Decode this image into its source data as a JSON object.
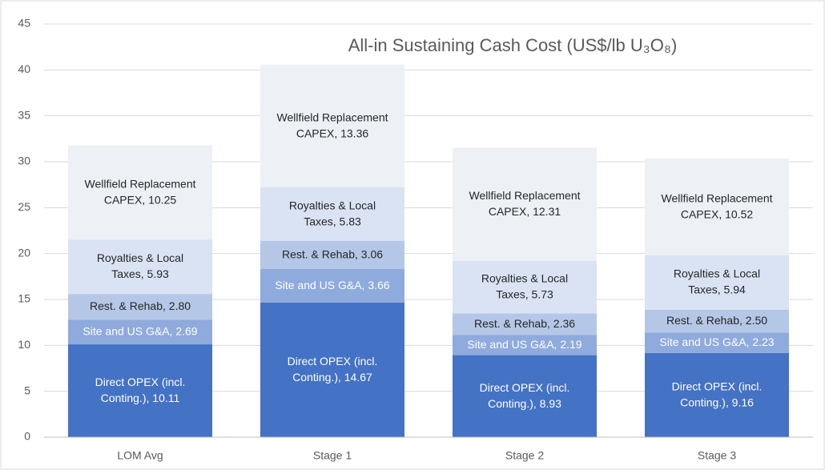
{
  "chart_data": {
    "type": "stacked_bar",
    "title": "All-in Sustaining Cash Cost (US$/lb U₃O₈)",
    "categories": [
      "LOM Avg",
      "Stage 1",
      "Stage 2",
      "Stage 3"
    ],
    "series": [
      {
        "name": "Direct OPEX (incl. Conting.)",
        "color": "#4472c4",
        "values": [
          10.11,
          14.67,
          8.93,
          9.16
        ],
        "value_labels": [
          "Direct OPEX (incl. Conting.), 10.11",
          "Direct OPEX (incl. Conting.), 14.67",
          "Direct OPEX (incl. Conting.), 8.93",
          "Direct OPEX (incl. Conting.), 9.16"
        ]
      },
      {
        "name": "Site and US G&A",
        "color": "#8faadc",
        "values": [
          2.69,
          3.66,
          2.19,
          2.23
        ],
        "value_labels": [
          "Site and US G&A, 2.69",
          "Site and US G&A, 3.66",
          "Site and US G&A, 2.19",
          "Site and US G&A, 2.23"
        ]
      },
      {
        "name": "Rest. & Rehab",
        "color": "#b4c7e7",
        "values": [
          2.8,
          3.06,
          2.36,
          2.5
        ],
        "value_labels": [
          "Rest. & Rehab, 2.80",
          "Rest. & Rehab, 3.06",
          "Rest. & Rehab, 2.36",
          "Rest. & Rehab, 2.50"
        ]
      },
      {
        "name": "Royalties & Local Taxes",
        "color": "#dae3f3",
        "values": [
          5.93,
          5.83,
          5.73,
          5.94
        ],
        "value_labels": [
          "Royalties & Local Taxes, 5.93",
          "Royalties & Local Taxes, 5.83",
          "Royalties & Local Taxes, 5.73",
          "Royalties & Local Taxes, 5.94"
        ]
      },
      {
        "name": "Wellfield Replacement CAPEX",
        "color": "#edf0f5",
        "values": [
          10.25,
          13.36,
          12.31,
          10.52
        ],
        "value_labels": [
          "Wellfield Replacement CAPEX, 10.25",
          "Wellfield Replacement CAPEX, 13.36",
          "Wellfield Replacement CAPEX, 12.31",
          "Wellfield Replacement CAPEX, 10.52"
        ]
      }
    ],
    "ylim": [
      0,
      45
    ],
    "yticks": [
      0,
      5,
      10,
      15,
      20,
      25,
      30,
      35,
      40,
      45
    ],
    "grid": true
  }
}
